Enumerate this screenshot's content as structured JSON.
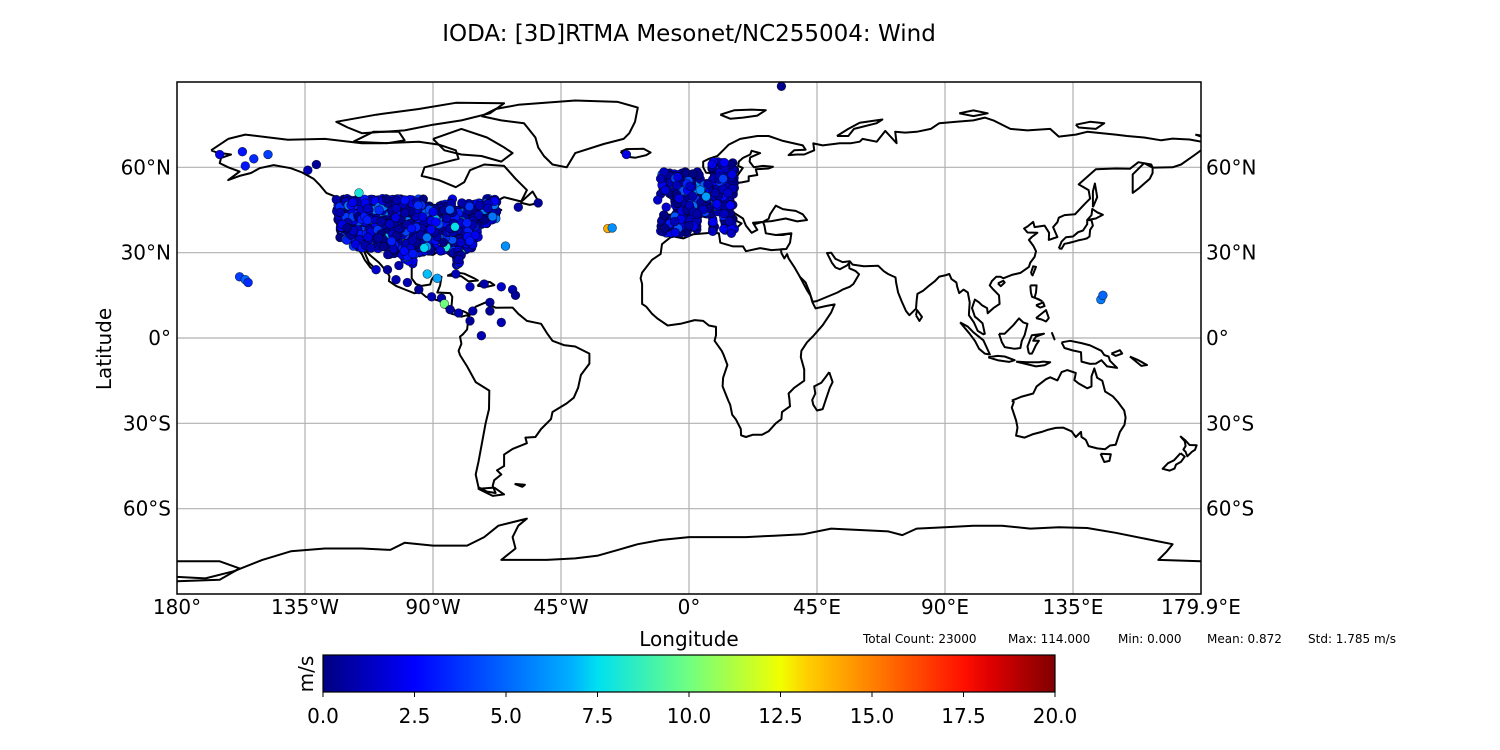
{
  "title": "IODA: [3D]RTMA Mesonet/NC255004: Wind",
  "xlabel": "Longitude",
  "ylabel": "Latitude",
  "x_ticks": [
    "180°",
    "135°W",
    "90°W",
    "45°W",
    "0°",
    "45°E",
    "90°E",
    "135°E",
    "179.9°E"
  ],
  "y_ticks": [
    "60°N",
    "30°N",
    "0°",
    "30°S",
    "60°S"
  ],
  "stats": {
    "total_count": "Total Count: 23000",
    "max": "Max: 114.000",
    "min": "Min: 0.000",
    "mean": "Mean: 0.872",
    "std": "Std: 1.785 m/s"
  },
  "colorbar": {
    "label": "m/s",
    "ticks": [
      "0.0",
      "2.5",
      "5.0",
      "7.5",
      "10.0",
      "12.5",
      "15.0",
      "17.5",
      "20.0"
    ],
    "colormap": "jet",
    "range": [
      0,
      20
    ]
  },
  "colors": {
    "coastline": "#000000",
    "grid": "#b0b0b0"
  },
  "chart_data": {
    "type": "scatter",
    "title": "IODA: [3D]RTMA Mesonet/NC255004: Wind",
    "xlabel": "Longitude",
    "ylabel": "Latitude",
    "xlim": [
      -180,
      180
    ],
    "ylim": [
      -90,
      90
    ],
    "grid": true,
    "projection": "PlateCarree",
    "value_units": "m/s",
    "value_range": [
      0,
      20
    ],
    "clusters": [
      {
        "name": "CONUS",
        "lon": [
          -125,
          -67
        ],
        "lat": [
          25,
          49
        ],
        "typical_value": 1.5
      },
      {
        "name": "Europe",
        "lon": [
          -10,
          16
        ],
        "lat": [
          37,
          62
        ],
        "typical_value": 1.0
      }
    ],
    "points": [
      {
        "lon": 32.5,
        "lat": 88.5,
        "value": 0.3
      },
      {
        "lon": -165,
        "lat": 64.5,
        "value": 2.0
      },
      {
        "lon": -157,
        "lat": 65.5,
        "value": 3.0
      },
      {
        "lon": -153,
        "lat": 63,
        "value": 3.5
      },
      {
        "lon": -148,
        "lat": 64.5,
        "value": 4.0
      },
      {
        "lon": -156,
        "lat": 60.5,
        "value": 3.0
      },
      {
        "lon": -134,
        "lat": 59,
        "value": 1.0
      },
      {
        "lon": -131,
        "lat": 61,
        "value": 0.5
      },
      {
        "lon": -158,
        "lat": 21.5,
        "value": 4.0
      },
      {
        "lon": -156,
        "lat": 20.5,
        "value": 5.0
      },
      {
        "lon": -155,
        "lat": 19.5,
        "value": 3.5
      },
      {
        "lon": -64.5,
        "lat": 32.3,
        "value": 6.0
      },
      {
        "lon": -28.5,
        "lat": 38.5,
        "value": 14.0
      },
      {
        "lon": -27,
        "lat": 38.7,
        "value": 6.0
      },
      {
        "lon": -22,
        "lat": 64.5,
        "value": 2.0
      },
      {
        "lon": -11,
        "lat": 48.5,
        "value": 1.5
      },
      {
        "lon": -8,
        "lat": 46,
        "value": 1.5
      },
      {
        "lon": -10,
        "lat": 56,
        "value": 1.0
      },
      {
        "lon": 144.8,
        "lat": 13.5,
        "value": 5.5
      },
      {
        "lon": 145.5,
        "lat": 15,
        "value": 5.0
      },
      {
        "lon": -73,
        "lat": 0.8,
        "value": 1.0
      },
      {
        "lon": -77,
        "lat": 6,
        "value": 0.5
      },
      {
        "lon": -81,
        "lat": 8.8,
        "value": 1.0
      },
      {
        "lon": -76,
        "lat": 9.5,
        "value": 0.8
      },
      {
        "lon": -70,
        "lat": 9.5,
        "value": 0.5
      },
      {
        "lon": -66,
        "lat": 5.5,
        "value": 1.0
      },
      {
        "lon": -70,
        "lat": 12.5,
        "value": 0.5
      },
      {
        "lon": -77,
        "lat": 18,
        "value": 1.2
      },
      {
        "lon": -72,
        "lat": 19,
        "value": 0.8
      },
      {
        "lon": -66,
        "lat": 18,
        "value": 1.5
      },
      {
        "lon": -62,
        "lat": 17,
        "value": 1.0
      },
      {
        "lon": -61,
        "lat": 15,
        "value": 0.5
      },
      {
        "lon": -82,
        "lat": 22.5,
        "value": 1.0
      },
      {
        "lon": -88.5,
        "lat": 21,
        "value": 6.5
      },
      {
        "lon": -90.5,
        "lat": 14.5,
        "value": 1.0
      },
      {
        "lon": -87,
        "lat": 14,
        "value": 0.8
      },
      {
        "lon": -86,
        "lat": 12,
        "value": 10.0
      },
      {
        "lon": -84,
        "lat": 10,
        "value": 0.5
      },
      {
        "lon": -99,
        "lat": 19.5,
        "value": 1.0
      },
      {
        "lon": -103,
        "lat": 20.5,
        "value": 1.0
      },
      {
        "lon": -106,
        "lat": 24,
        "value": 0.5
      },
      {
        "lon": -110,
        "lat": 24,
        "value": 1.5
      },
      {
        "lon": -102,
        "lat": 25.5,
        "value": 1.0
      },
      {
        "lon": -95,
        "lat": 17,
        "value": 0.5
      },
      {
        "lon": -116,
        "lat": 51,
        "value": 8.0
      },
      {
        "lon": -92,
        "lat": 22.5,
        "value": 7.0
      },
      {
        "lon": -53,
        "lat": 47.5,
        "value": 0.5
      },
      {
        "lon": -60,
        "lat": 46,
        "value": 0.8
      },
      {
        "lon": 4,
        "lat": 52,
        "value": 6.0
      },
      {
        "lon": 12,
        "lat": 56,
        "value": 4.0
      }
    ]
  }
}
